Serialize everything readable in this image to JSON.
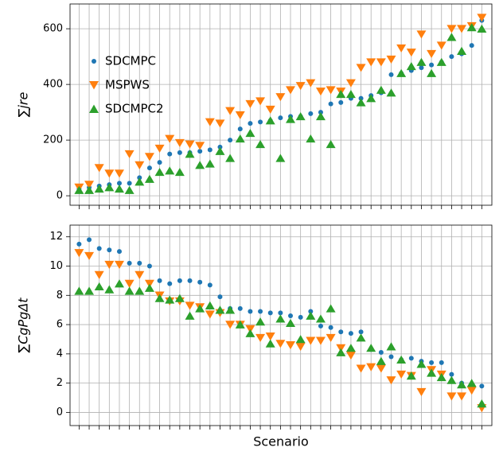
{
  "chart_data": [
    {
      "type": "scatter",
      "ylabel": "∑jre",
      "x": [
        0,
        1,
        2,
        3,
        4,
        5,
        6,
        7,
        8,
        9,
        10,
        11,
        12,
        13,
        14,
        15,
        16,
        17,
        18,
        19,
        20,
        21,
        22,
        23,
        24,
        25,
        26,
        27,
        28,
        29,
        30,
        31,
        32,
        33,
        34,
        35,
        36,
        37,
        38,
        39,
        40
      ],
      "xlim": [
        -0.9,
        41
      ],
      "ylim": [
        -34,
        689
      ],
      "xticks": [
        0,
        1,
        2,
        3,
        4,
        5,
        6,
        7,
        8,
        9,
        10,
        11,
        12,
        13,
        14,
        15,
        16,
        17,
        18,
        19,
        20,
        21,
        22,
        23,
        24,
        25,
        26,
        27,
        28,
        29,
        30,
        31,
        32,
        33,
        34,
        35,
        36,
        37,
        38,
        39,
        40
      ],
      "yticks": [
        0,
        200,
        400,
        600
      ],
      "grid": true,
      "legend": "upper left",
      "series": [
        {
          "name": "SDCMPC",
          "color": "#1f77b4",
          "marker": "o",
          "values": [
            25,
            30,
            35,
            40,
            45,
            45,
            65,
            100,
            120,
            150,
            155,
            155,
            160,
            165,
            175,
            200,
            240,
            260,
            265,
            270,
            280,
            285,
            285,
            295,
            300,
            330,
            335,
            350,
            350,
            360,
            370,
            435,
            440,
            450,
            460,
            470,
            480,
            500,
            510,
            540,
            630
          ]
        },
        {
          "name": "MSPWS",
          "color": "#ff7f0e",
          "marker": "v",
          "values": [
            30,
            40,
            100,
            80,
            80,
            150,
            110,
            140,
            170,
            205,
            190,
            185,
            180,
            265,
            260,
            305,
            290,
            330,
            340,
            310,
            355,
            380,
            395,
            405,
            375,
            380,
            375,
            405,
            460,
            480,
            480,
            490,
            530,
            515,
            580,
            510,
            540,
            600,
            600,
            610,
            640
          ]
        },
        {
          "name": "SDCMPC2",
          "color": "#2ca02c",
          "marker": "^",
          "values": [
            20,
            20,
            25,
            30,
            25,
            20,
            50,
            60,
            85,
            90,
            85,
            150,
            110,
            115,
            160,
            135,
            205,
            225,
            185,
            270,
            135,
            275,
            285,
            205,
            285,
            185,
            365,
            365,
            335,
            350,
            380,
            370,
            440,
            465,
            480,
            440,
            480,
            570,
            520,
            605,
            600
          ]
        }
      ]
    },
    {
      "type": "scatter",
      "ylabel": "∑CgPgΔt",
      "xlabel": "Scenario",
      "x": [
        0,
        1,
        2,
        3,
        4,
        5,
        6,
        7,
        8,
        9,
        10,
        11,
        12,
        13,
        14,
        15,
        16,
        17,
        18,
        19,
        20,
        21,
        22,
        23,
        24,
        25,
        26,
        27,
        28,
        29,
        30,
        31,
        32,
        33,
        34,
        35,
        36,
        37,
        38,
        39,
        40
      ],
      "xlim": [
        -0.9,
        41
      ],
      "ylim": [
        -0.9,
        12.8
      ],
      "xticks": [
        0,
        1,
        2,
        3,
        4,
        5,
        6,
        7,
        8,
        9,
        10,
        11,
        12,
        13,
        14,
        15,
        16,
        17,
        18,
        19,
        20,
        21,
        22,
        23,
        24,
        25,
        26,
        27,
        28,
        29,
        30,
        31,
        32,
        33,
        34,
        35,
        36,
        37,
        38,
        39,
        40
      ],
      "yticks": [
        0,
        2,
        4,
        6,
        8,
        10,
        12
      ],
      "grid": true,
      "series": [
        {
          "name": "SDCMPC",
          "color": "#1f77b4",
          "marker": "o",
          "values": [
            11.5,
            11.8,
            11.2,
            11.1,
            11.0,
            10.2,
            10.2,
            10.0,
            9.0,
            8.8,
            9.0,
            9.0,
            8.9,
            8.7,
            7.9,
            7.1,
            7.1,
            6.9,
            6.9,
            6.8,
            6.8,
            6.6,
            6.5,
            6.9,
            5.9,
            5.8,
            5.5,
            5.4,
            5.5,
            4.3,
            4.1,
            3.8,
            3.6,
            3.7,
            3.5,
            3.4,
            3.4,
            2.6,
            2.0,
            1.8,
            1.8
          ]
        },
        {
          "name": "MSPWS",
          "color": "#ff7f0e",
          "marker": "v",
          "values": [
            10.9,
            10.7,
            9.4,
            10.1,
            10.1,
            8.8,
            9.4,
            8.8,
            8.0,
            7.6,
            7.6,
            7.3,
            7.2,
            6.7,
            6.8,
            6.0,
            6.0,
            5.7,
            5.1,
            5.2,
            4.7,
            4.6,
            4.5,
            4.9,
            4.9,
            5.1,
            4.4,
            3.9,
            3.0,
            3.1,
            3.0,
            2.2,
            2.6,
            2.5,
            1.4,
            2.9,
            2.6,
            1.1,
            1.1,
            1.5,
            0.3
          ]
        },
        {
          "name": "SDCMPC2",
          "color": "#2ca02c",
          "marker": "^",
          "values": [
            8.3,
            8.3,
            8.6,
            8.4,
            8.8,
            8.3,
            8.3,
            8.5,
            7.8,
            7.7,
            7.8,
            6.6,
            7.1,
            7.3,
            7.0,
            7.0,
            6.0,
            5.4,
            6.2,
            4.7,
            6.4,
            6.1,
            5.0,
            6.6,
            6.4,
            7.1,
            4.1,
            4.4,
            5.1,
            4.4,
            3.5,
            4.5,
            3.6,
            2.5,
            3.3,
            2.7,
            2.4,
            2.2,
            1.9,
            2.0,
            0.6
          ]
        }
      ]
    }
  ]
}
